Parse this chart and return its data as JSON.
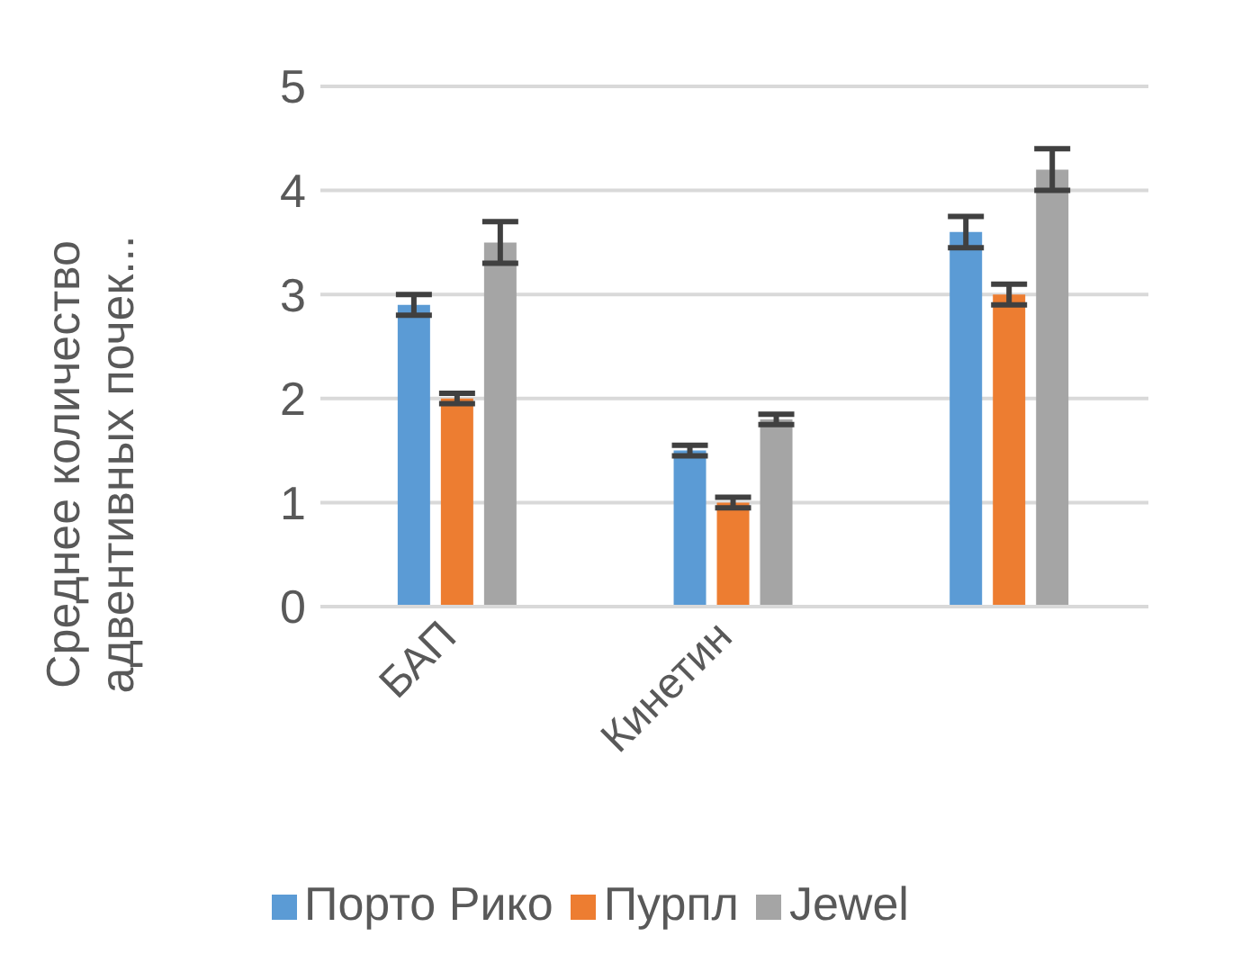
{
  "chart_data": {
    "type": "bar",
    "ylabel": "Среднее количество адвентивных почек...",
    "categories": [
      "БАП",
      "Кинетин",
      null
    ],
    "series": [
      {
        "name": "Порто Рико",
        "color": "#5b9bd5",
        "values": [
          2.9,
          1.5,
          3.6
        ],
        "errors": [
          0.1,
          0.05,
          0.15
        ]
      },
      {
        "name": "Пурпл",
        "color": "#ed7d31",
        "values": [
          2.0,
          1.0,
          3.0
        ],
        "errors": [
          0.05,
          0.05,
          0.1
        ]
      },
      {
        "name": "Jewel",
        "color": "#a5a5a5",
        "values": [
          3.5,
          1.8,
          4.2
        ],
        "errors": [
          0.2,
          0.05,
          0.2
        ]
      }
    ],
    "ylim": [
      0,
      5
    ],
    "yticks": [
      0,
      1,
      2,
      3,
      4,
      5
    ],
    "grid": "y",
    "legend": "bottom"
  }
}
